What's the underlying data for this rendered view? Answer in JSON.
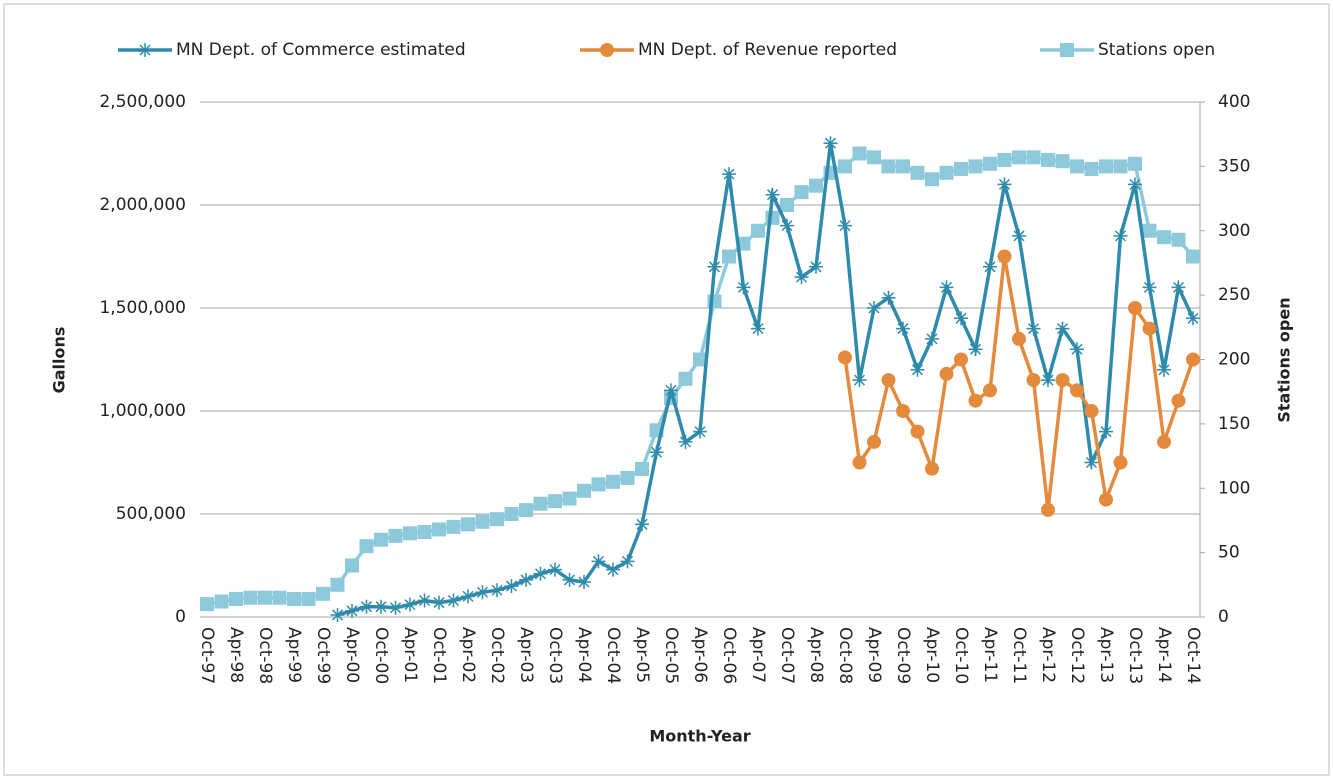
{
  "chart_data": {
    "type": "line",
    "xlabel": "Month-Year",
    "ylabel": "Gallons",
    "y2label": "Stations open",
    "categories": [
      "Oct-97",
      null,
      "Apr-98",
      null,
      "Oct-98",
      null,
      "Apr-99",
      null,
      "Oct-99",
      null,
      "Apr-00",
      null,
      "Oct-00",
      null,
      "Apr-01",
      null,
      "Oct-01",
      null,
      "Apr-02",
      null,
      "Oct-02",
      null,
      "Apr-03",
      null,
      "Oct-03",
      null,
      "Apr-04",
      null,
      "Oct-04",
      null,
      "Apr-05",
      null,
      "Oct-05",
      null,
      "Apr-06",
      null,
      "Oct-06",
      null,
      "Apr-07",
      null,
      "Oct-07",
      null,
      "Apr-08",
      null,
      "Oct-08",
      null,
      "Apr-09",
      null,
      "Oct-09",
      null,
      "Apr-10",
      null,
      "Oct-10",
      null,
      "Apr-11",
      null,
      "Oct-11",
      null,
      "Apr-12",
      null,
      "Oct-12",
      null,
      "Apr-13",
      null,
      "Oct-13",
      null,
      "Apr-14",
      null,
      "Oct-14"
    ],
    "series": [
      {
        "name": "MN Dept. of Commerce estimated",
        "color": "#2e8bab",
        "marker": "asterisk",
        "values": [
          null,
          null,
          null,
          null,
          null,
          null,
          null,
          null,
          null,
          10000,
          30000,
          50000,
          50000,
          45000,
          60000,
          80000,
          70000,
          80000,
          100000,
          120000,
          130000,
          150000,
          180000,
          210000,
          230000,
          180000,
          170000,
          270000,
          230000,
          270000,
          450000,
          800000,
          1100000,
          850000,
          900000,
          1700000,
          2150000,
          1600000,
          1400000,
          2050000,
          1900000,
          1650000,
          1700000,
          2300000,
          1900000,
          1150000,
          1500000,
          1550000,
          1400000,
          1200000,
          1350000,
          1600000,
          1450000,
          1300000,
          1700000,
          2100000,
          1850000,
          1400000,
          1150000,
          1400000,
          1300000,
          750000,
          900000,
          1850000,
          2100000,
          1600000,
          1200000,
          1600000,
          1450000
        ]
      },
      {
        "name": "MN Dept. of Revenue reported",
        "color": "#e38a3c",
        "marker": "circle",
        "values": [
          null,
          null,
          null,
          null,
          null,
          null,
          null,
          null,
          null,
          null,
          null,
          null,
          null,
          null,
          null,
          null,
          null,
          null,
          null,
          null,
          null,
          null,
          null,
          null,
          null,
          null,
          null,
          null,
          null,
          null,
          null,
          null,
          null,
          null,
          null,
          null,
          null,
          null,
          null,
          null,
          null,
          null,
          null,
          null,
          1260000,
          750000,
          850000,
          1150000,
          1000000,
          900000,
          720000,
          1180000,
          1250000,
          1050000,
          1100000,
          1750000,
          1350000,
          1150000,
          520000,
          1150000,
          1100000,
          1000000,
          570000,
          750000,
          1500000,
          1400000,
          850000,
          1050000,
          1250000
        ]
      },
      {
        "name": "Stations open",
        "color": "#8ec9db",
        "marker": "square",
        "axis": "y2",
        "values": [
          10,
          12,
          14,
          15,
          15,
          15,
          14,
          14,
          18,
          25,
          40,
          55,
          60,
          63,
          65,
          66,
          68,
          70,
          72,
          74,
          76,
          80,
          83,
          88,
          90,
          92,
          98,
          103,
          105,
          108,
          115,
          145,
          170,
          185,
          200,
          245,
          280,
          290,
          300,
          310,
          320,
          330,
          335,
          345,
          350,
          360,
          357,
          350,
          350,
          345,
          340,
          345,
          348,
          350,
          352,
          355,
          357,
          357,
          355,
          354,
          350,
          348,
          350,
          350,
          352,
          300,
          295,
          293,
          280
        ]
      }
    ],
    "ylim": [
      0,
      2500000
    ],
    "yticks": [
      0,
      {
        "value": 500000,
        "label": "500,000"
      },
      {
        "value": 1000000,
        "label": "1,000,000"
      },
      {
        "value": 1500000,
        "label": "1,500,000"
      },
      {
        "value": 2000000,
        "label": "2,000,000"
      },
      {
        "value": 2500000,
        "label": "2,500,000"
      }
    ],
    "y2lim": [
      0,
      400
    ],
    "y2ticks": [
      0,
      50,
      100,
      150,
      200,
      250,
      300,
      350,
      400
    ],
    "grid": true,
    "legend": "top"
  }
}
